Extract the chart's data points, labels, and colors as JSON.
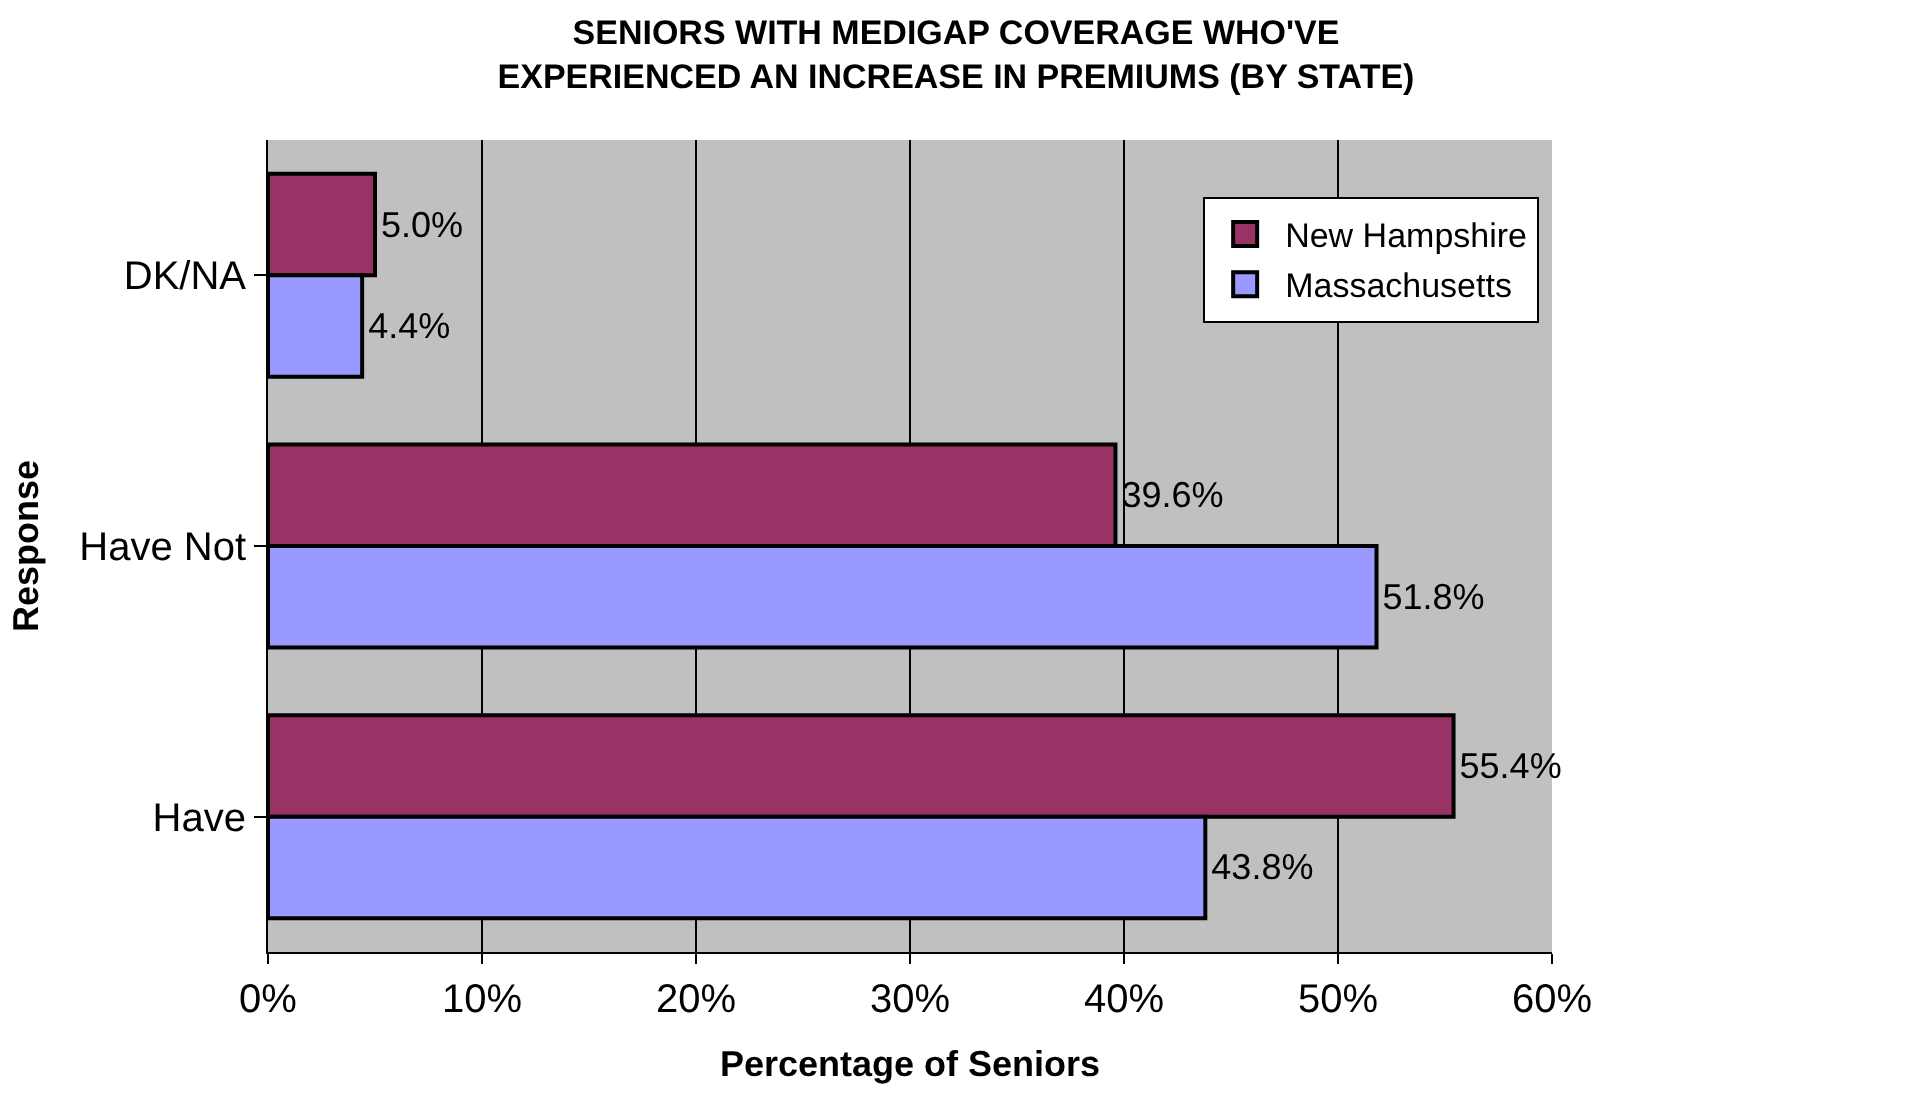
{
  "chart_data": {
    "type": "bar",
    "orientation": "horizontal",
    "title": "SENIORS WITH MEDIGAP COVERAGE WHO'VE EXPERIENCED AN INCREASE IN PREMIUMS (BY STATE)",
    "xlabel": "Percentage of Seniors",
    "ylabel": "Response",
    "categories": [
      "DK/NA",
      "Have Not",
      "Have"
    ],
    "series": [
      {
        "name": "New Hampshire",
        "color": "#993366",
        "values": [
          5.0,
          39.6,
          55.4
        ],
        "value_labels": [
          "5.0%",
          "39.6%",
          "55.4%"
        ]
      },
      {
        "name": "Massachusetts",
        "color": "#9999ff",
        "values": [
          4.4,
          51.8,
          43.8
        ],
        "value_labels": [
          "4.4%",
          "51.8%",
          "43.8%"
        ]
      }
    ],
    "xlim": [
      0,
      60
    ],
    "xticks": [
      {
        "value": 0,
        "label": "0%"
      },
      {
        "value": 10,
        "label": "10%"
      },
      {
        "value": 20,
        "label": "20%"
      },
      {
        "value": 30,
        "label": "30%"
      },
      {
        "value": 40,
        "label": "40%"
      },
      {
        "value": 50,
        "label": "50%"
      },
      {
        "value": 60,
        "label": "60%"
      }
    ],
    "grid": "x",
    "legend": "top right"
  }
}
